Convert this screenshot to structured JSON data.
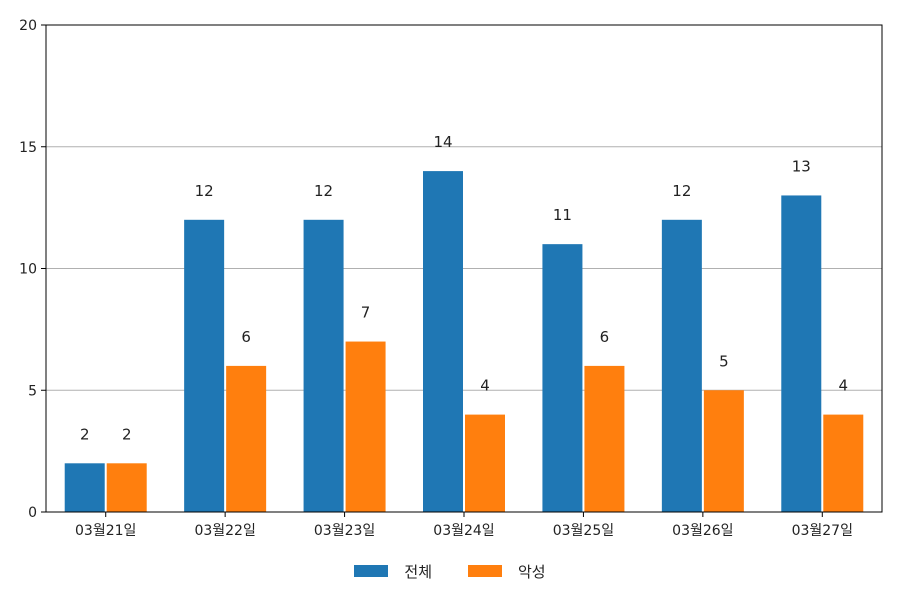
{
  "chart_data": {
    "type": "bar",
    "categories": [
      "03월21일",
      "03월22일",
      "03월23일",
      "03월24일",
      "03월25일",
      "03월26일",
      "03월27일"
    ],
    "series": [
      {
        "name": "전체",
        "values": [
          2,
          12,
          12,
          14,
          11,
          12,
          13
        ],
        "color": "#1f77b4"
      },
      {
        "name": "악성",
        "values": [
          2,
          6,
          7,
          4,
          6,
          5,
          4
        ],
        "color": "#ff7f0e"
      }
    ],
    "ylim": [
      0,
      20
    ],
    "yticks": [
      0,
      5,
      10,
      15,
      20
    ],
    "grid": "horizontal",
    "legend_position": "bottom-center",
    "title": "",
    "xlabel": "",
    "ylabel": ""
  }
}
